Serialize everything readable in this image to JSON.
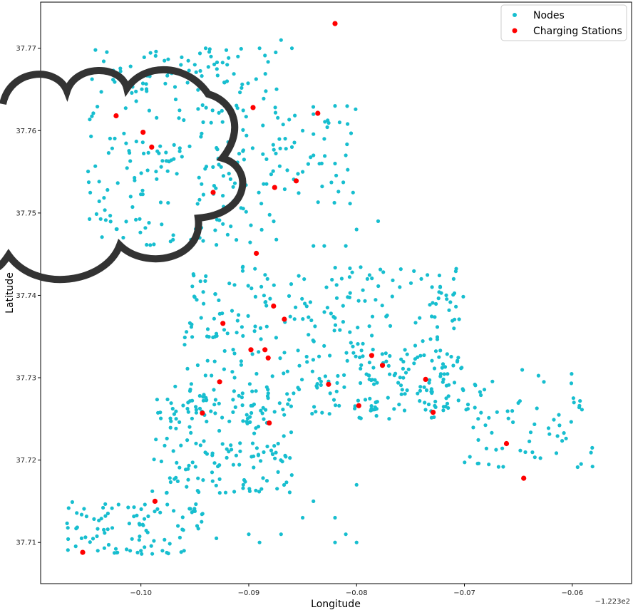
{
  "chart_data": {
    "type": "scatter",
    "xlabel": "Longitude",
    "ylabel": "Latitude",
    "x_offset_label": "−1.223e2",
    "xlim": [
      -0.1093,
      -0.0545
    ],
    "ylim": [
      37.705,
      37.7756
    ],
    "x_ticks": [
      -0.1,
      -0.09,
      -0.08,
      -0.07,
      -0.06
    ],
    "x_tick_labels": [
      "−0.10",
      "−0.09",
      "−0.08",
      "−0.07",
      "−0.06"
    ],
    "y_ticks": [
      37.71,
      37.72,
      37.73,
      37.74,
      37.75,
      37.76,
      37.77
    ],
    "y_tick_labels": [
      "37.71",
      "37.72",
      "37.73",
      "37.74",
      "37.75",
      "37.76",
      "37.77"
    ],
    "legend_position": "top-right",
    "grid": false,
    "series": [
      {
        "name": "Nodes",
        "color": "#17becf",
        "regions": [
          {
            "x": [
              -0.105,
              -0.087
            ],
            "y": [
              37.746,
              37.77
            ],
            "n": 260
          },
          {
            "x": [
              -0.088,
              -0.08
            ],
            "y": [
              37.751,
              37.763
            ],
            "n": 40
          },
          {
            "x": [
              -0.096,
              -0.07
            ],
            "y": [
              37.725,
              37.744
            ],
            "n": 320
          },
          {
            "x": [
              -0.08,
              -0.07
            ],
            "y": [
              37.726,
              37.733
            ],
            "n": 60
          },
          {
            "x": [
              -0.099,
              -0.086
            ],
            "y": [
              37.716,
              37.729
            ],
            "n": 170
          },
          {
            "x": [
              -0.107,
              -0.094
            ],
            "y": [
              37.7085,
              37.715
            ],
            "n": 90
          },
          {
            "x": [
              -0.07,
              -0.058
            ],
            "y": [
              37.718,
              37.731
            ],
            "n": 70
          }
        ],
        "points": [
          [
            -0.087,
            37.771
          ],
          [
            -0.086,
            37.77
          ],
          [
            -0.089,
            37.77
          ],
          [
            -0.0875,
            37.7695
          ],
          [
            -0.091,
            37.769
          ],
          [
            -0.092,
            37.768
          ],
          [
            -0.0935,
            37.769
          ],
          [
            -0.094,
            37.77
          ],
          [
            -0.095,
            37.768
          ],
          [
            -0.082,
            37.763
          ],
          [
            -0.084,
            37.762
          ],
          [
            -0.085,
            37.76
          ],
          [
            -0.083,
            37.759
          ],
          [
            -0.086,
            37.758
          ],
          [
            -0.084,
            37.757
          ],
          [
            -0.082,
            37.756
          ],
          [
            -0.081,
            37.757
          ],
          [
            -0.085,
            37.755
          ],
          [
            -0.08,
            37.748
          ],
          [
            -0.078,
            37.749
          ],
          [
            -0.081,
            37.746
          ],
          [
            -0.083,
            37.746
          ],
          [
            -0.084,
            37.746
          ],
          [
            -0.074,
            37.742
          ],
          [
            -0.073,
            37.741
          ],
          [
            -0.076,
            37.741
          ],
          [
            -0.079,
            37.742
          ],
          [
            -0.071,
            37.742
          ],
          [
            -0.08,
            37.717
          ],
          [
            -0.084,
            37.715
          ],
          [
            -0.085,
            37.713
          ],
          [
            -0.082,
            37.713
          ],
          [
            -0.081,
            37.711
          ],
          [
            -0.082,
            37.71
          ],
          [
            -0.08,
            37.71
          ],
          [
            -0.087,
            37.711
          ],
          [
            -0.089,
            37.71
          ],
          [
            -0.09,
            37.711
          ],
          [
            -0.093,
            37.7105
          ],
          [
            -0.096,
            37.709
          ],
          [
            -0.098,
            37.709
          ],
          [
            -0.1,
            37.709
          ],
          [
            -0.101,
            37.709
          ],
          [
            -0.104,
            37.709
          ]
        ]
      },
      {
        "name": "Charging Stations",
        "color": "#ff0000",
        "points": [
          [
            -0.082,
            37.773
          ],
          [
            -0.1023,
            37.7618
          ],
          [
            -0.0998,
            37.7598
          ],
          [
            -0.099,
            37.758
          ],
          [
            -0.0896,
            37.7628
          ],
          [
            -0.0836,
            37.7621
          ],
          [
            -0.0856,
            37.7539
          ],
          [
            -0.0876,
            37.7531
          ],
          [
            -0.0933,
            37.7525
          ],
          [
            -0.0893,
            37.7451
          ],
          [
            -0.0877,
            37.7387
          ],
          [
            -0.0867,
            37.7371
          ],
          [
            -0.0924,
            37.7366
          ],
          [
            -0.0898,
            37.7334
          ],
          [
            -0.0885,
            37.7334
          ],
          [
            -0.0882,
            37.7324
          ],
          [
            -0.0786,
            37.7327
          ],
          [
            -0.0776,
            37.7315
          ],
          [
            -0.0826,
            37.7292
          ],
          [
            -0.0927,
            37.7295
          ],
          [
            -0.0736,
            37.7298
          ],
          [
            -0.0798,
            37.7266
          ],
          [
            -0.0943,
            37.7257
          ],
          [
            -0.0881,
            37.7245
          ],
          [
            -0.0729,
            37.7258
          ],
          [
            -0.0661,
            37.722
          ],
          [
            -0.0645,
            37.7178
          ],
          [
            -0.0987,
            37.715
          ],
          [
            -0.1054,
            37.7088
          ]
        ]
      }
    ]
  },
  "overlay": {
    "icon": "cloud-icon",
    "stroke_color": "#333333"
  }
}
